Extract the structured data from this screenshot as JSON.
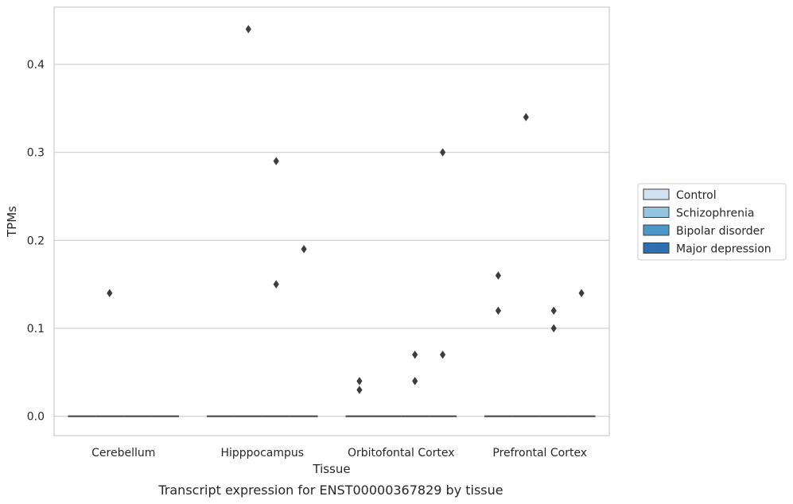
{
  "chart_data": {
    "type": "box",
    "title": "",
    "caption": "Transcript expression for ENST00000367829 by tissue",
    "xlabel": "Tissue",
    "ylabel": "TPMs",
    "ylim": [
      -0.022,
      0.465
    ],
    "yticks": [
      0.0,
      0.1,
      0.2,
      0.3,
      0.4
    ],
    "ytick_labels": [
      "0.0",
      "0.1",
      "0.2",
      "0.3",
      "0.4"
    ],
    "grid": "horizontal",
    "legend_position": "right",
    "categories": [
      "Cerebellum",
      "Hipppocampus",
      "Orbitofontal Cortex",
      "Prefrontal Cortex"
    ],
    "series": [
      {
        "name": "Control",
        "color": "#d0e1f2",
        "medians": [
          0.0,
          0.0,
          0.0,
          0.0
        ],
        "outliers": [
          [],
          [],
          [
            0.04,
            0.03
          ],
          [
            0.16,
            0.12
          ]
        ]
      },
      {
        "name": "Schizophrenia",
        "color": "#94c4df",
        "medians": [
          0.0,
          0.0,
          0.0,
          0.0
        ],
        "outliers": [
          [
            0.14
          ],
          [
            0.44
          ],
          [],
          [
            0.34
          ]
        ]
      },
      {
        "name": "Bipolar disorder",
        "color": "#4a98c9",
        "medians": [
          0.0,
          0.0,
          0.0,
          0.0
        ],
        "outliers": [
          [],
          [
            0.29,
            0.15
          ],
          [
            0.07,
            0.04
          ],
          [
            0.12,
            0.1
          ]
        ]
      },
      {
        "name": "Major depression",
        "color": "#2e6fb0",
        "medians": [
          0.0,
          0.0,
          0.0,
          0.0
        ],
        "outliers": [
          [],
          [
            0.19
          ],
          [
            0.3,
            0.07
          ],
          [
            0.14
          ]
        ]
      }
    ]
  }
}
